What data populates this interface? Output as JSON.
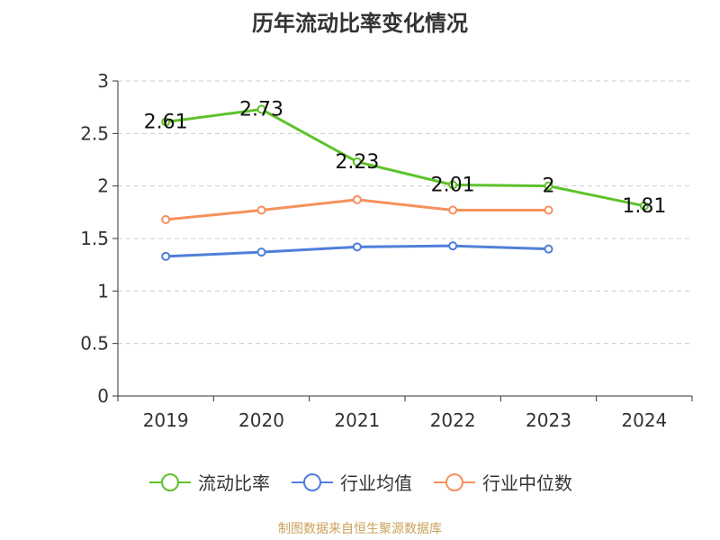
{
  "chart_data": {
    "type": "line",
    "title": "历年流动比率变化情况",
    "categories": [
      "2019",
      "2020",
      "2021",
      "2022",
      "2023",
      "2024"
    ],
    "ylim": [
      0,
      3
    ],
    "yticks": [
      0,
      0.5,
      1,
      1.5,
      2,
      2.5,
      3
    ],
    "ytick_labels": [
      "0",
      "0.5",
      "1",
      "1.5",
      "2",
      "2.5",
      "3"
    ],
    "grid": true,
    "legend_position": "bottom",
    "series": [
      {
        "name": "流动比率",
        "values": [
          2.61,
          2.73,
          2.23,
          2.01,
          2.0,
          1.81
        ],
        "labels": [
          "2.61",
          "2.73",
          "2.23",
          "2.01",
          "2",
          "1.81"
        ],
        "color": "#5ec22b",
        "show_labels": true
      },
      {
        "name": "行业均值",
        "values": [
          1.33,
          1.37,
          1.42,
          1.43,
          1.4,
          null
        ],
        "color": "#4f7fd9",
        "show_labels": false
      },
      {
        "name": "行业中位数",
        "values": [
          1.68,
          1.77,
          1.87,
          1.77,
          1.77,
          null
        ],
        "color": "#f5915c",
        "show_labels": false
      }
    ]
  },
  "source_note": "制图数据来自恒生聚源数据库"
}
